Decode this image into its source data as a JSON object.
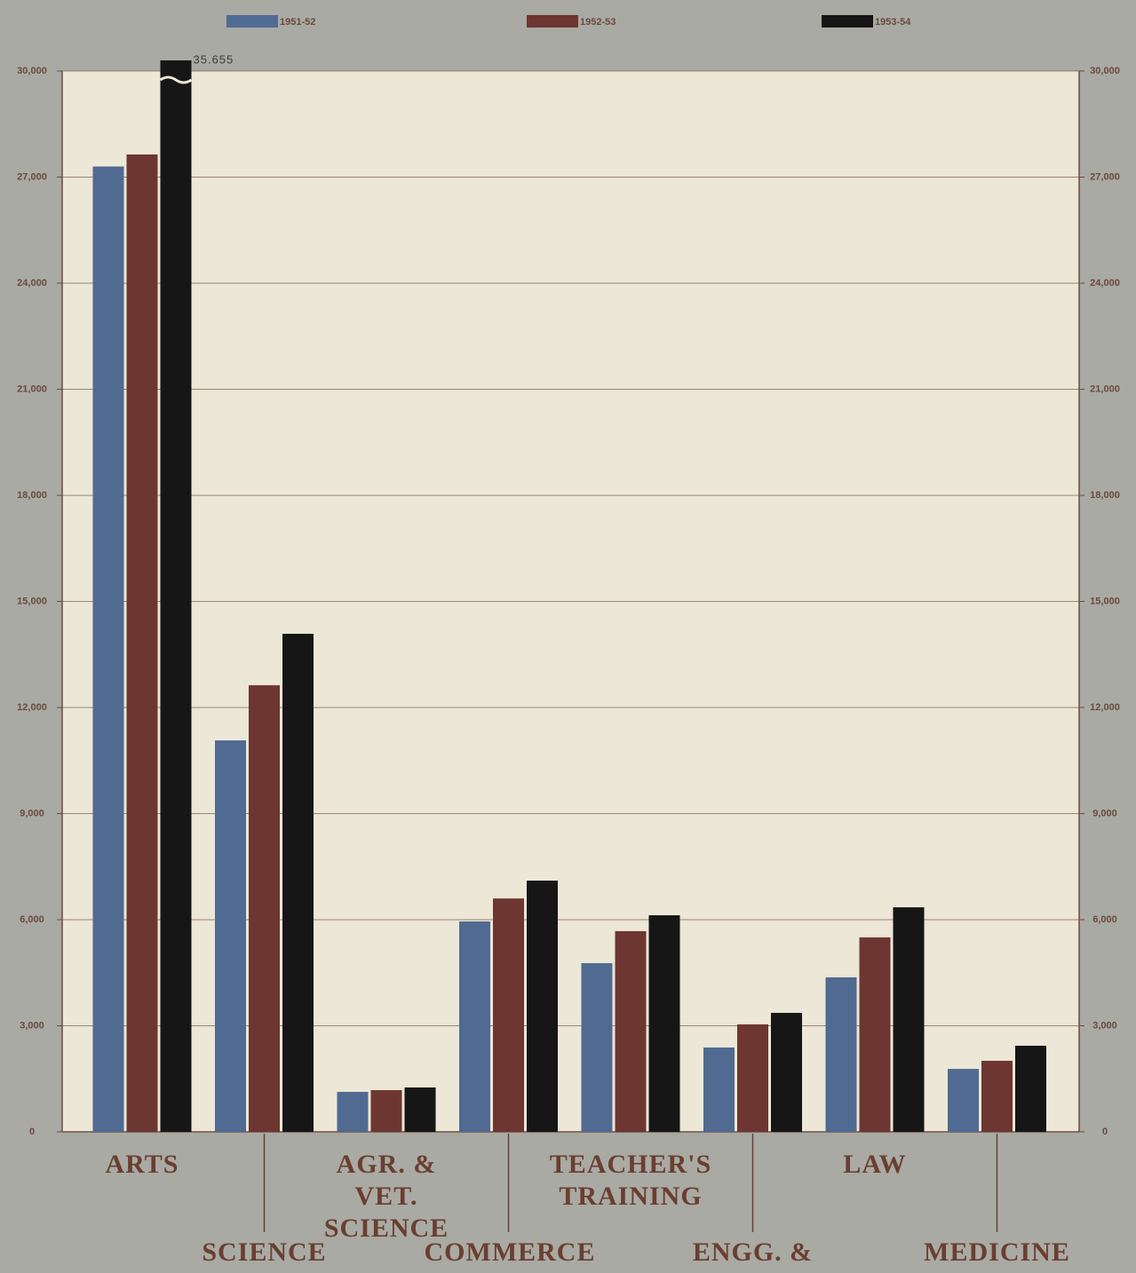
{
  "chart_data": {
    "type": "bar",
    "categories": [
      "ARTS",
      "SCIENCE",
      "AGR. & VET. SCIENCE",
      "COMMERCE",
      "TEACHER'S TRAINING",
      "ENGG. & TECH.",
      "LAW",
      "MEDICINE"
    ],
    "series": [
      {
        "name": "1951-52",
        "color": "#506a92",
        "values": [
          27300,
          11070,
          1130,
          5950,
          4770,
          2385,
          4370,
          1780
        ]
      },
      {
        "name": "1952-53",
        "color": "#6d3631",
        "values": [
          27640,
          12630,
          1180,
          6600,
          5675,
          3040,
          5500,
          2010
        ]
      },
      {
        "name": "1953-54",
        "color": "#161616",
        "values": [
          35655,
          14085,
          1255,
          7105,
          6125,
          3365,
          6350,
          2435
        ],
        "value_labels": [
          "35.655",
          null,
          null,
          null,
          null,
          null,
          null,
          null
        ]
      }
    ],
    "ylim": [
      0,
      30000
    ],
    "yticks": [
      0,
      {
        "value": 3000,
        "label": "3,000"
      },
      {
        "value": 6000,
        "label": "6,000"
      },
      {
        "value": 9000,
        "label": "9,000"
      },
      {
        "value": 12000,
        "label": "12,000"
      },
      {
        "value": 15000,
        "label": "15,000"
      },
      {
        "value": 18000,
        "label": "18,000"
      },
      {
        "value": 21000,
        "label": "21,000"
      },
      {
        "value": 24000,
        "label": "24,000"
      },
      {
        "value": 27000,
        "label": "27,000"
      },
      {
        "value": 30000,
        "label": "30,000"
      }
    ],
    "grid": true
  }
}
